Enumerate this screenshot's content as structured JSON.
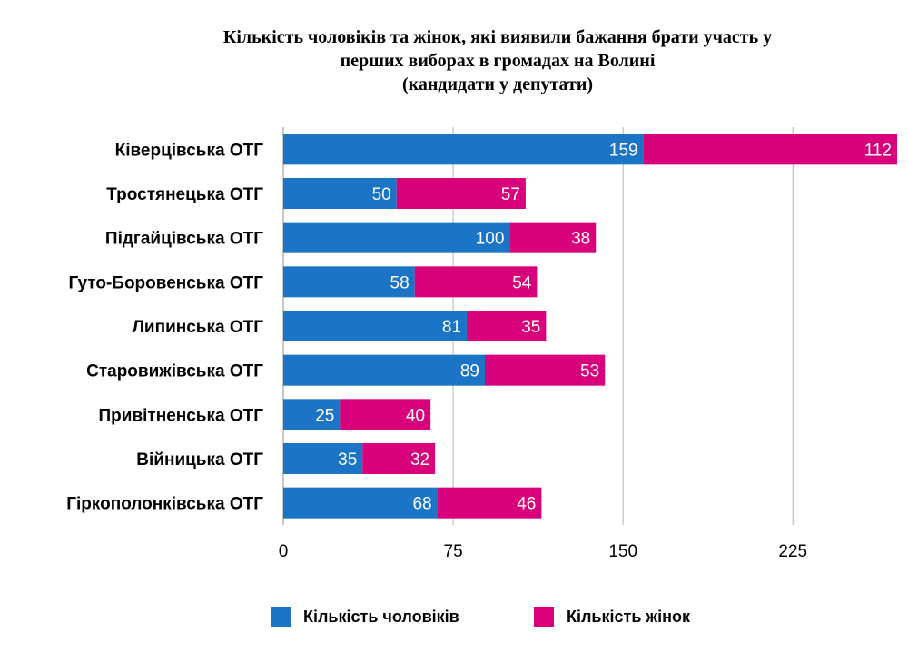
{
  "chart_data": {
    "type": "bar",
    "orientation": "horizontal",
    "stacked": true,
    "title_lines": [
      "Кількість чоловіків та жінок, які виявили бажання брати участь у",
      "перших виборах в громадах на Волині",
      "(кандидати у депутати)"
    ],
    "categories": [
      "Ківерцівська ОТГ",
      "Тростянецька ОТГ",
      "Підгайцівська ОТГ",
      "Гуто-Боровенська ОТГ",
      "Липинська ОТГ",
      "Старовижівська ОТГ",
      "Привітненська ОТГ",
      "Війницька ОТГ",
      "Гіркополонківська ОТГ"
    ],
    "series": [
      {
        "name": "Кількість чоловіків",
        "color": "#1b74c6",
        "values": [
          159,
          50,
          100,
          58,
          81,
          89,
          25,
          35,
          68
        ]
      },
      {
        "name": "Кількість жінок",
        "color": "#d8007b",
        "values": [
          112,
          57,
          38,
          54,
          35,
          53,
          40,
          32,
          46
        ]
      }
    ],
    "xticks": [
      0,
      75,
      150,
      225
    ],
    "xlim": [
      0,
      271
    ],
    "grid": true,
    "legend_position": "bottom"
  }
}
